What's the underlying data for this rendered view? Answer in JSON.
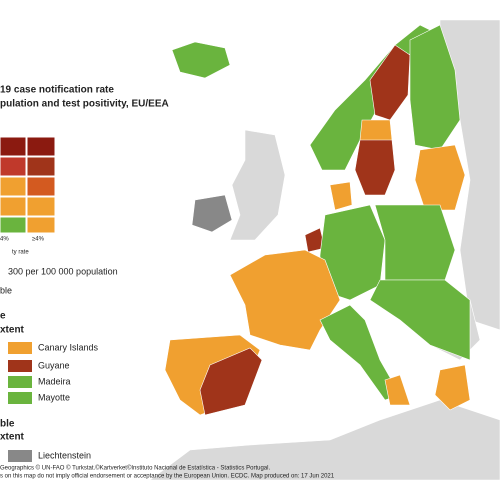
{
  "header": {
    "title_line1": "19 case notification rate",
    "title_line2": "pulation and test positivity, EU/EEA"
  },
  "matrix": {
    "col_labels": [
      "4%",
      "≥4%"
    ],
    "axis_label": "ty rate"
  },
  "notes": {
    "threshold": "300 per 100 000 population",
    "available": "ble"
  },
  "outermost": {
    "heading1": "e",
    "heading2": "xtent",
    "items": [
      "Canary Islands",
      "Guyane",
      "Madeira",
      "Mayotte"
    ]
  },
  "not_included": {
    "heading1": "ble",
    "heading2": "xtent",
    "items": [
      "Liechtenstein"
    ]
  },
  "footer": {
    "line1": "Geographics © UN-FAO © Turkstat.©Kartverket©Instituto Nacional de Estatística - Statistics Portugal.",
    "line2": "s on this map do not imply official endorsement or acceptance by the European Union. ECDC. Map produced on: 17 Jun 2021"
  }
}
